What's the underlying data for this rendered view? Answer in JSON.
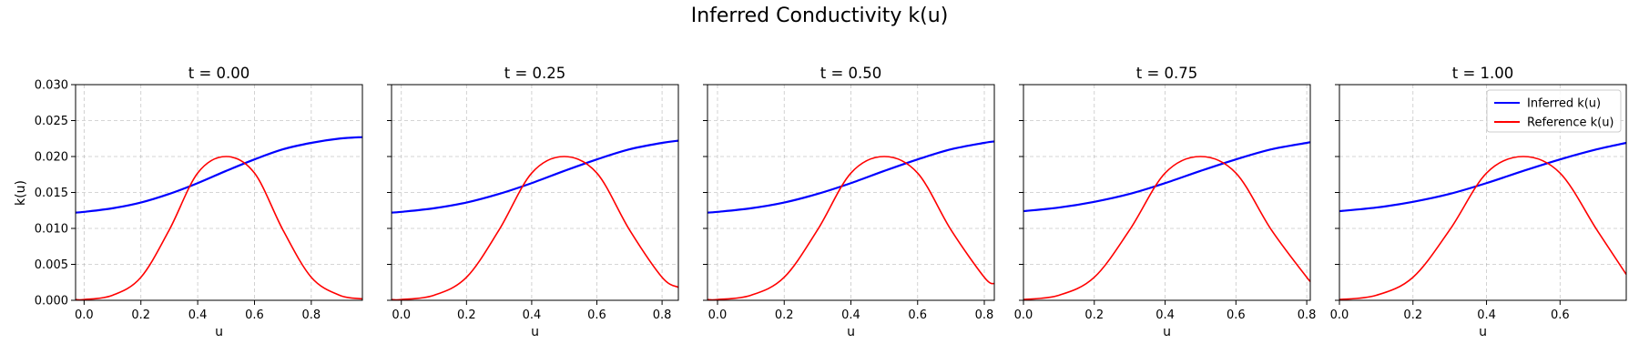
{
  "figure": {
    "title": "Inferred Conductivity k(u)"
  },
  "chart_data": {
    "type": "line",
    "shared_y": true,
    "ylabel": "k(u)",
    "ylim": [
      0,
      0.03
    ],
    "yticks": [
      0,
      0.005,
      0.01,
      0.015,
      0.02,
      0.025,
      0.03
    ],
    "ytick_labels": [
      "0.000",
      "0.005",
      "0.010",
      "0.015",
      "0.020",
      "0.025",
      "0.030"
    ],
    "grid": true,
    "legend": {
      "placement": "top-right",
      "panel_index": 4,
      "entries": [
        {
          "label": "Inferred k(u)",
          "color": "#0000ff"
        },
        {
          "label": "Reference k(u)",
          "color": "#ff0000"
        }
      ]
    },
    "colors": {
      "inferred": "#0000ff",
      "reference": "#ff0000",
      "grid": "#b0b0b0"
    },
    "panels": [
      {
        "title": "t = 0.00",
        "xlabel": "u",
        "xlim": [
          -0.03,
          0.98
        ],
        "xticks": [
          0,
          0.2,
          0.4,
          0.6,
          0.8
        ],
        "xtick_labels": [
          "0.0",
          "0.2",
          "0.4",
          "0.6",
          "0.8"
        ],
        "series": [
          {
            "name": "Inferred k(u)",
            "x": [
              -0.03,
              0.0,
              0.1,
              0.2,
              0.3,
              0.4,
              0.5,
              0.6,
              0.7,
              0.8,
              0.9,
              0.98
            ],
            "y": [
              0.0122,
              0.0123,
              0.0128,
              0.0136,
              0.0148,
              0.0163,
              0.018,
              0.0196,
              0.021,
              0.0219,
              0.0225,
              0.0227
            ]
          },
          {
            "name": "Reference k(u)",
            "x": [
              -0.03,
              0.0,
              0.1,
              0.2,
              0.3,
              0.4,
              0.5,
              0.6,
              0.7,
              0.8,
              0.9,
              0.98
            ],
            "y": [
              0.0001,
              0.0001,
              0.0007,
              0.0032,
              0.0098,
              0.0177,
              0.02,
              0.0177,
              0.0098,
              0.0032,
              0.0007,
              0.0002
            ]
          }
        ]
      },
      {
        "title": "t = 0.25",
        "xlabel": "u",
        "xlim": [
          -0.03,
          0.85
        ],
        "xticks": [
          0,
          0.2,
          0.4,
          0.6,
          0.8
        ],
        "xtick_labels": [
          "0.0",
          "0.2",
          "0.4",
          "0.6",
          "0.8"
        ],
        "series": [
          {
            "name": "Inferred k(u)",
            "x": [
              -0.03,
              0.0,
              0.1,
              0.2,
              0.3,
              0.4,
              0.5,
              0.6,
              0.7,
              0.8,
              0.85
            ],
            "y": [
              0.0122,
              0.0123,
              0.0128,
              0.0136,
              0.0148,
              0.0163,
              0.018,
              0.0196,
              0.021,
              0.0219,
              0.0222
            ]
          },
          {
            "name": "Reference k(u)",
            "x": [
              -0.03,
              0.0,
              0.1,
              0.2,
              0.3,
              0.4,
              0.5,
              0.6,
              0.7,
              0.8,
              0.85
            ],
            "y": [
              0.0001,
              0.0001,
              0.0007,
              0.0032,
              0.0098,
              0.0177,
              0.02,
              0.0177,
              0.0098,
              0.0032,
              0.0018
            ]
          }
        ]
      },
      {
        "title": "t = 0.50",
        "xlabel": "u",
        "xlim": [
          -0.03,
          0.83
        ],
        "xticks": [
          0,
          0.2,
          0.4,
          0.6,
          0.8
        ],
        "xtick_labels": [
          "0.0",
          "0.2",
          "0.4",
          "0.6",
          "0.8"
        ],
        "series": [
          {
            "name": "Inferred k(u)",
            "x": [
              -0.03,
              0.0,
              0.1,
              0.2,
              0.3,
              0.4,
              0.5,
              0.6,
              0.7,
              0.8,
              0.83
            ],
            "y": [
              0.0122,
              0.0123,
              0.0128,
              0.0136,
              0.0148,
              0.0163,
              0.018,
              0.0196,
              0.021,
              0.0219,
              0.0221
            ]
          },
          {
            "name": "Reference k(u)",
            "x": [
              -0.03,
              0.0,
              0.1,
              0.2,
              0.3,
              0.4,
              0.5,
              0.6,
              0.7,
              0.8,
              0.83
            ],
            "y": [
              0.0001,
              0.0001,
              0.0007,
              0.0032,
              0.0098,
              0.0177,
              0.02,
              0.0177,
              0.0098,
              0.0032,
              0.0023
            ]
          }
        ]
      },
      {
        "title": "t = 0.75",
        "xlabel": "u",
        "xlim": [
          0.0,
          0.81
        ],
        "xticks": [
          0,
          0.2,
          0.4,
          0.6,
          0.8
        ],
        "xtick_labels": [
          "0.0",
          "0.2",
          "0.4",
          "0.6",
          "0.8"
        ],
        "series": [
          {
            "name": "Inferred k(u)",
            "x": [
              0.0,
              0.1,
              0.2,
              0.3,
              0.4,
              0.5,
              0.6,
              0.7,
              0.8,
              0.81
            ],
            "y": [
              0.0124,
              0.0129,
              0.0137,
              0.0148,
              0.0163,
              0.018,
              0.0196,
              0.021,
              0.0219,
              0.022
            ]
          },
          {
            "name": "Reference k(u)",
            "x": [
              0.0,
              0.1,
              0.2,
              0.3,
              0.4,
              0.5,
              0.6,
              0.7,
              0.8,
              0.81
            ],
            "y": [
              0.0001,
              0.0007,
              0.0032,
              0.0098,
              0.0177,
              0.02,
              0.0177,
              0.0098,
              0.0032,
              0.0028
            ]
          }
        ]
      },
      {
        "title": "t = 1.00",
        "xlabel": "u",
        "xlim": [
          0.0,
          0.78
        ],
        "xticks": [
          0,
          0.2,
          0.4,
          0.6
        ],
        "xtick_labels": [
          "0.0",
          "0.2",
          "0.4",
          "0.6"
        ],
        "series": [
          {
            "name": "Inferred k(u)",
            "x": [
              0.0,
              0.1,
              0.2,
              0.3,
              0.4,
              0.5,
              0.6,
              0.7,
              0.78
            ],
            "y": [
              0.0124,
              0.0129,
              0.0137,
              0.0148,
              0.0163,
              0.018,
              0.0196,
              0.021,
              0.0219
            ]
          },
          {
            "name": "Reference k(u)",
            "x": [
              0.0,
              0.1,
              0.2,
              0.3,
              0.4,
              0.5,
              0.6,
              0.7,
              0.78
            ],
            "y": [
              0.0001,
              0.0007,
              0.0032,
              0.0098,
              0.0177,
              0.02,
              0.0177,
              0.0098,
              0.0036
            ]
          }
        ]
      }
    ]
  }
}
